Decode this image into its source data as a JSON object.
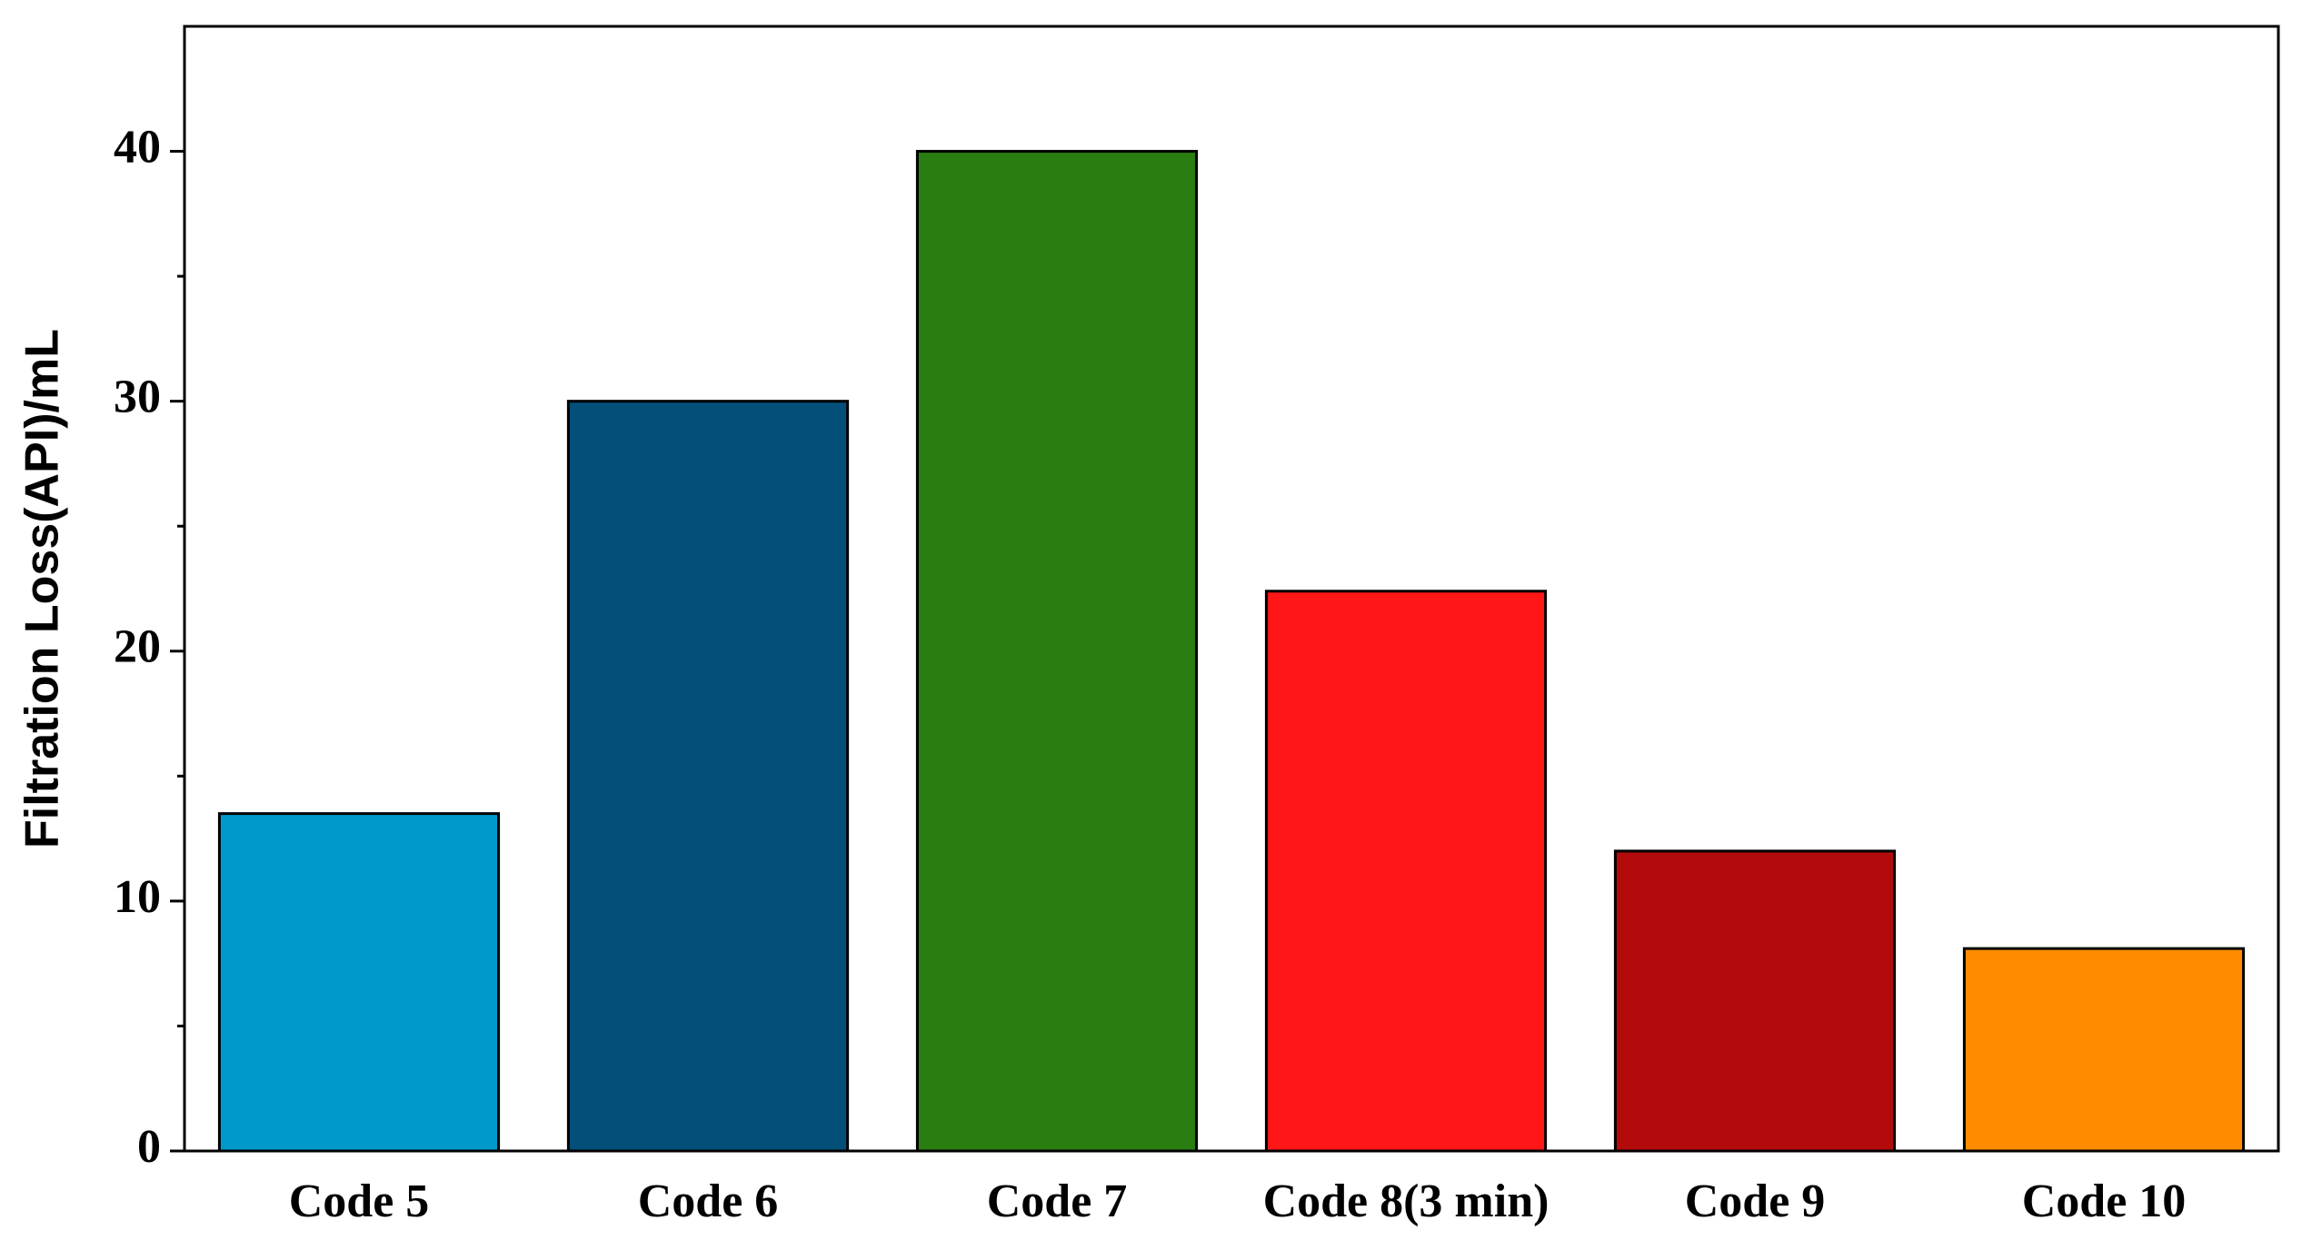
{
  "chart_data": {
    "type": "bar",
    "ylabel": "Filtration Loss(API)/mL",
    "categories": [
      "Code 5",
      "Code 6",
      "Code 7",
      "Code 8(3 min)",
      "Code 9",
      "Code 10"
    ],
    "values": [
      13.5,
      30,
      40,
      22.4,
      12,
      8.1
    ],
    "colors": [
      "#0099cc",
      "#034f7a",
      "#2a7d10",
      "#ff1616",
      "#b30b0b",
      "#ff8c00"
    ],
    "ylim": [
      0,
      45
    ],
    "yticks": [
      0,
      10,
      20,
      30,
      40
    ],
    "minor_yticks": [
      5,
      15,
      25,
      35
    ],
    "grid": false
  }
}
